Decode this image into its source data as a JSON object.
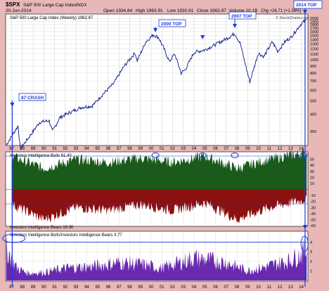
{
  "header": {
    "symbol": "$SPX",
    "name": "S&P 500 Large Cap Index",
    "exchange": "INDX",
    "date": "20-Jun-2014",
    "open": "Open 1934.84",
    "high": "High 1963.91",
    "low": "Low 1930.91",
    "close": "Close 1962.87",
    "volume": "Volume 10.1B",
    "chg": "Chg +26.71 (+1.38%)",
    "watermark": "© StockCharts.com"
  },
  "panels": {
    "price_legend": "S&P 500 Large Cap Index (Weekly) 1962.87",
    "bulls_legend": "Investors Intelligence Bulls 61.40",
    "bears_legend": "Investors Intelligence Bears 16.30",
    "ratio_legend": "Investors Intelligence Bulls/Investors Intelligence Bears 3.77"
  },
  "annotations": {
    "crash87": "87 CRASH",
    "top2000": "2000 TOP",
    "top2007": "2007 TOP",
    "top2014": "2014 TOP"
  },
  "colors": {
    "background": "#e8b8b8",
    "panel": "#ffffff",
    "price_line": "#0a1a8a",
    "bulls_fill": "#1a5a1a",
    "bears_fill": "#8b1010",
    "ratio_fill": "#6a2ab0",
    "annotation": "#1a3adc"
  },
  "chart_data": [
    {
      "type": "line",
      "title": "S&P 500 Large Cap Index (Weekly) 1962.87",
      "yscale": "log",
      "ylim": [
        240,
        2100
      ],
      "y_ticks": [
        300,
        400,
        500,
        600,
        700,
        800,
        900,
        1000,
        1100,
        1200,
        1300,
        1400,
        1500,
        1600,
        1700,
        1800,
        1900,
        2000
      ],
      "x_ticks": [
        "87",
        "88",
        "89",
        "90",
        "91",
        "92",
        "93",
        "94",
        "95",
        "96",
        "97",
        "98",
        "99",
        "00",
        "01",
        "02",
        "03",
        "04",
        "05",
        "06",
        "07",
        "08",
        "09",
        "10",
        "11",
        "12",
        "13",
        "14"
      ],
      "x": [
        1986.5,
        1987.6,
        1987.8,
        1988.5,
        1989.6,
        1990.5,
        1990.8,
        1991.5,
        1992.5,
        1993.5,
        1994.5,
        1995.5,
        1996.5,
        1997.5,
        1998.5,
        1998.7,
        1999.5,
        2000.2,
        2000.7,
        2001.2,
        2001.7,
        2002.2,
        2002.8,
        2003.2,
        2004.0,
        2005.0,
        2006.0,
        2007.0,
        2007.8,
        2008.3,
        2008.9,
        2009.2,
        2010.0,
        2010.5,
        2011.3,
        2011.8,
        2012.5,
        2013.0,
        2014.0,
        2014.5
      ],
      "y": [
        240,
        330,
        225,
        265,
        350,
        360,
        300,
        380,
        415,
        450,
        460,
        560,
        670,
        900,
        1120,
        980,
        1350,
        1520,
        1450,
        1200,
        970,
        1100,
        800,
        850,
        1130,
        1180,
        1290,
        1420,
        1550,
        1320,
        850,
        690,
        1120,
        1050,
        1350,
        1150,
        1360,
        1450,
        1830,
        1962.87
      ]
    },
    {
      "type": "area",
      "title": "Investors Intelligence Bulls 61.40",
      "ylim": [
        -60,
        60
      ],
      "y_ticks": [
        -60,
        -50,
        -40,
        -30,
        -20,
        -10,
        10,
        20,
        30,
        40,
        50
      ],
      "series": [
        {
          "name": "Investors Intelligence Bulls",
          "x": [
            1987,
            1990,
            1993,
            1996,
            1999,
            2002,
            2005,
            2008,
            2011,
            2014.5
          ],
          "values": [
            55,
            35,
            50,
            45,
            52,
            45,
            55,
            35,
            50,
            61.4
          ]
        },
        {
          "name": "Investors Intelligence Bears",
          "x": [
            1987,
            1990,
            1993,
            1996,
            1999,
            2002,
            2005,
            2008,
            2011,
            2014.5
          ],
          "values": [
            -25,
            -50,
            -30,
            -35,
            -25,
            -35,
            -22,
            -50,
            -30,
            -16.3
          ]
        }
      ]
    },
    {
      "type": "area",
      "title": "Investors Intelligence Bulls/Investors Intelligence Bears 3.77",
      "ylim": [
        0,
        5
      ],
      "y_ticks": [
        1,
        2,
        3,
        4
      ],
      "x": [
        1986.5,
        1987.5,
        1988.5,
        1990,
        1992,
        1995,
        1997,
        1999,
        2001,
        2004,
        2007,
        2009,
        2011,
        2013,
        2014.5
      ],
      "values": [
        4.0,
        1.5,
        0.9,
        1.0,
        1.5,
        1.8,
        2.2,
        2.0,
        1.5,
        2.8,
        2.2,
        1.2,
        1.8,
        2.5,
        3.77
      ]
    }
  ]
}
